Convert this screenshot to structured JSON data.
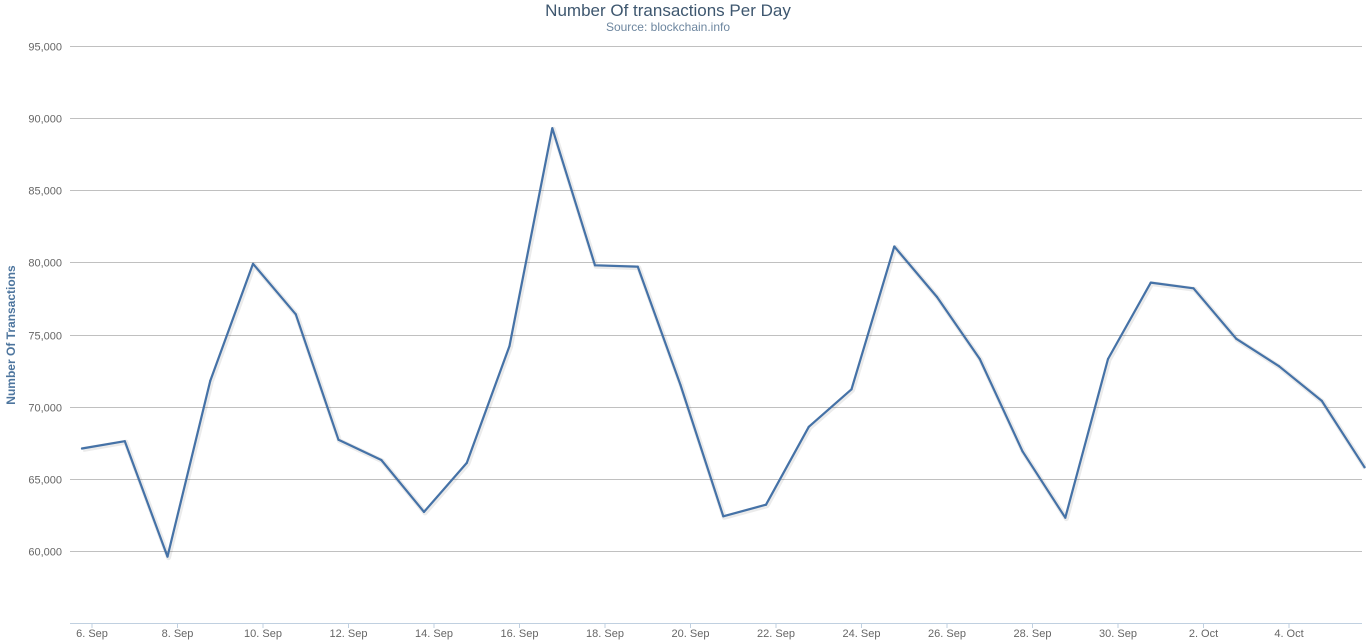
{
  "chart_data": {
    "type": "line",
    "title": "Number Of transactions Per Day",
    "subtitle": "Source: blockchain.info",
    "xlabel": "",
    "ylabel": "Number Of Transactions",
    "x": [
      "6 Sep",
      "7 Sep",
      "8 Sep",
      "9 Sep",
      "10 Sep",
      "11 Sep",
      "12 Sep",
      "13 Sep",
      "14 Sep",
      "15 Sep",
      "16 Sep",
      "17 Sep",
      "18 Sep",
      "19 Sep",
      "20 Sep",
      "21 Sep",
      "22 Sep",
      "23 Sep",
      "24 Sep",
      "25 Sep",
      "26 Sep",
      "27 Sep",
      "28 Sep",
      "29 Sep",
      "30 Sep",
      "1 Oct",
      "2 Oct",
      "3 Oct",
      "4 Oct",
      "5 Oct",
      "5.5 Oct"
    ],
    "x_tick_labels": [
      "6. Sep",
      "8. Sep",
      "10. Sep",
      "12. Sep",
      "14. Sep",
      "16. Sep",
      "18. Sep",
      "20. Sep",
      "22. Sep",
      "24. Sep",
      "26. Sep",
      "28. Sep",
      "30. Sep",
      "2. Oct",
      "4. Oct"
    ],
    "series": [
      {
        "values": [
          67100,
          67600,
          59600,
          71800,
          79900,
          76400,
          67700,
          66300,
          62700,
          66100,
          74200,
          89300,
          79800,
          79700,
          71500,
          62400,
          63200,
          68600,
          71200,
          81100,
          77600,
          73300,
          66900,
          62300,
          73300,
          78600,
          78200,
          74700,
          72800,
          70400,
          65800
        ],
        "color": "#4572a7"
      }
    ],
    "ylim": [
      55000,
      95000
    ],
    "y_ticks": [
      60000,
      65000,
      70000,
      75000,
      80000,
      85000,
      90000,
      95000
    ],
    "y_tick_labels": [
      "60,000",
      "65,000",
      "70,000",
      "75,000",
      "80,000",
      "85,000",
      "90,000",
      "95,000"
    ],
    "grid": true,
    "legend": "none"
  }
}
